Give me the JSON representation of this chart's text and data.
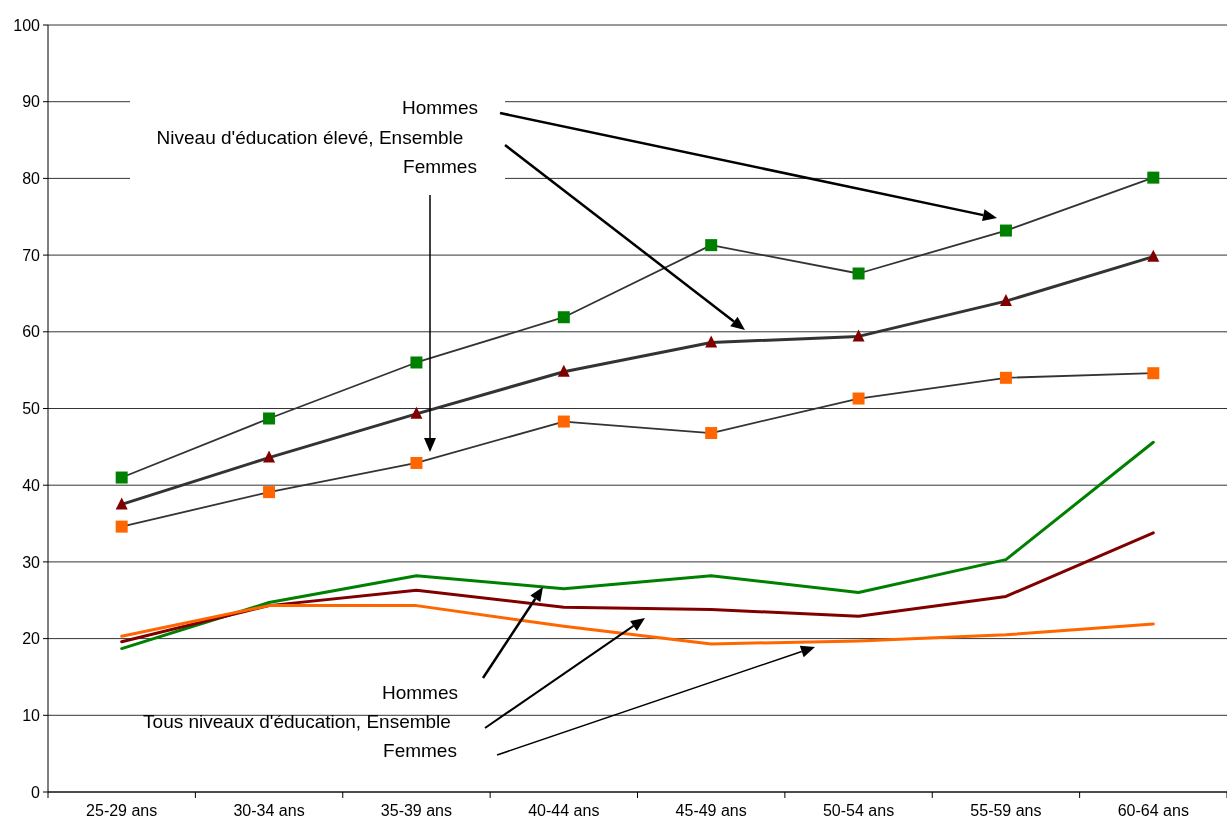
{
  "chart_data": {
    "type": "line",
    "categories": [
      "25-29 ans",
      "30-34 ans",
      "35-39 ans",
      "40-44 ans",
      "45-49 ans",
      "50-54 ans",
      "55-59 ans",
      "60-64 ans"
    ],
    "series": [
      {
        "color": "#008000",
        "marker": "square",
        "values": [
          41.0,
          48.7,
          56.0,
          61.9,
          71.3,
          67.6,
          73.2,
          80.1
        ]
      },
      {
        "color": "#800000",
        "marker": "triangle",
        "values": [
          37.5,
          43.6,
          49.3,
          54.8,
          58.6,
          59.4,
          64.0,
          69.8
        ]
      },
      {
        "color": "#ff6600",
        "marker": "square",
        "values": [
          34.6,
          39.1,
          42.9,
          48.3,
          46.8,
          51.3,
          54.0,
          54.6
        ]
      },
      {
        "color": "#008000",
        "marker": "none",
        "values": [
          18.7,
          24.7,
          28.2,
          26.5,
          28.2,
          26.0,
          30.3,
          45.6
        ]
      },
      {
        "color": "#800000",
        "marker": "none",
        "values": [
          19.6,
          24.3,
          26.3,
          24.1,
          23.8,
          22.9,
          25.5,
          33.8
        ]
      },
      {
        "color": "#ff6600",
        "marker": "none",
        "values": [
          20.3,
          24.3,
          24.3,
          21.6,
          19.3,
          19.7,
          20.5,
          21.9
        ]
      }
    ],
    "ylim": [
      0,
      100
    ],
    "yticks": [
      0,
      10,
      20,
      30,
      40,
      50,
      60,
      70,
      80,
      90,
      100
    ],
    "grid": "y",
    "annotations": [
      "Hommes",
      "Niveau d'éducation élevé, Ensemble",
      "Femmes",
      "Hommes",
      "Tous niveaux d'éducation, Ensemble",
      "Femmes"
    ]
  }
}
